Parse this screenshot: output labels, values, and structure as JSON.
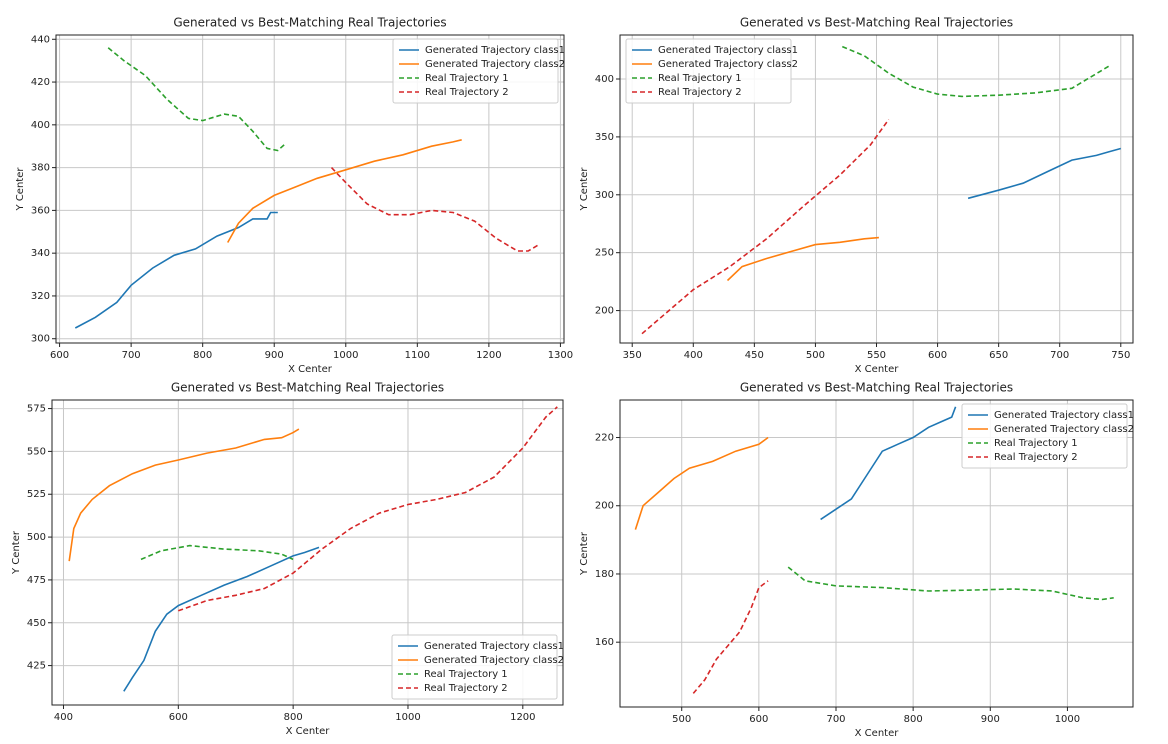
{
  "chart_data": [
    {
      "type": "line",
      "title": "Generated vs Best-Matching Real Trajectories",
      "x_label": "X Center",
      "y_label": "Y Center",
      "xlim": [
        595,
        1305
      ],
      "xticks": [
        600,
        700,
        800,
        900,
        1000,
        1100,
        1200,
        1300
      ],
      "ylim": [
        298,
        442
      ],
      "yticks": [
        300,
        320,
        340,
        360,
        380,
        400,
        420,
        440
      ],
      "grid": true,
      "legend": "upper right",
      "series": [
        {
          "name": "Generated Trajectory class1",
          "color": "#1f77b4",
          "linestyle": "solid",
          "x": [
            622,
            650,
            680,
            700,
            730,
            760,
            790,
            820,
            850,
            870,
            890,
            895,
            905
          ],
          "values": [
            305,
            310,
            317,
            325,
            333,
            339,
            342,
            348,
            352,
            356,
            356,
            359,
            359
          ]
        },
        {
          "name": "Generated Trajectory class2",
          "color": "#ff7f0e",
          "linestyle": "solid",
          "x": [
            835,
            850,
            870,
            900,
            930,
            960,
            1000,
            1040,
            1080,
            1120,
            1150,
            1162
          ],
          "values": [
            345,
            354,
            361,
            367,
            371,
            375,
            379,
            383,
            386,
            390,
            392,
            393
          ]
        },
        {
          "name": "Real Trajectory 1",
          "color": "#2ca02c",
          "linestyle": "dashed",
          "x": [
            668,
            690,
            720,
            750,
            780,
            800,
            830,
            850,
            870,
            890,
            905,
            915
          ],
          "values": [
            436,
            430,
            423,
            412,
            403,
            402,
            405,
            404,
            397,
            389,
            388,
            391
          ]
        },
        {
          "name": "Real Trajectory 2",
          "color": "#d62728",
          "linestyle": "dashed",
          "x": [
            980,
            1000,
            1030,
            1060,
            1090,
            1120,
            1150,
            1180,
            1210,
            1240,
            1255,
            1270
          ],
          "values": [
            380,
            373,
            363,
            358,
            358,
            360,
            359,
            355,
            347,
            341,
            341,
            344
          ]
        }
      ]
    },
    {
      "type": "line",
      "title": "Generated vs Best-Matching Real Trajectories",
      "x_label": "X Center",
      "y_label": "Y Center",
      "xlim": [
        340,
        760
      ],
      "xticks": [
        350,
        400,
        450,
        500,
        550,
        600,
        650,
        700,
        750
      ],
      "ylim": [
        172,
        438
      ],
      "yticks": [
        200,
        250,
        300,
        350,
        400
      ],
      "grid": true,
      "legend": "upper left",
      "series": [
        {
          "name": "Generated Trajectory class1",
          "color": "#1f77b4",
          "linestyle": "solid",
          "x": [
            625,
            650,
            670,
            690,
            710,
            730,
            740,
            750
          ],
          "values": [
            297,
            304,
            310,
            320,
            330,
            334,
            337,
            340
          ]
        },
        {
          "name": "Generated Trajectory class2",
          "color": "#ff7f0e",
          "linestyle": "solid",
          "x": [
            428,
            440,
            460,
            480,
            500,
            520,
            540,
            552
          ],
          "values": [
            226,
            238,
            245,
            251,
            257,
            259,
            262,
            263
          ]
        },
        {
          "name": "Real Trajectory 1",
          "color": "#2ca02c",
          "linestyle": "dashed",
          "x": [
            522,
            540,
            560,
            580,
            600,
            620,
            650,
            680,
            710,
            740
          ],
          "values": [
            428,
            420,
            405,
            393,
            387,
            385,
            386,
            388,
            392,
            411
          ]
        },
        {
          "name": "Real Trajectory 2",
          "color": "#d62728",
          "linestyle": "dashed",
          "x": [
            358,
            380,
            400,
            430,
            460,
            490,
            520,
            545,
            560
          ],
          "values": [
            180,
            200,
            218,
            238,
            262,
            290,
            317,
            343,
            365
          ]
        }
      ]
    },
    {
      "type": "line",
      "title": "Generated vs Best-Matching Real Trajectories",
      "x_label": "X Center",
      "y_label": "Y Center",
      "xlim": [
        380,
        1270
      ],
      "xticks": [
        400,
        600,
        800,
        1000,
        1200
      ],
      "ylim": [
        402,
        580
      ],
      "yticks": [
        425,
        450,
        475,
        500,
        525,
        550,
        575
      ],
      "grid": true,
      "legend": "lower right",
      "series": [
        {
          "name": "Generated Trajectory class1",
          "color": "#1f77b4",
          "linestyle": "solid",
          "x": [
            505,
            520,
            540,
            560,
            580,
            600,
            640,
            680,
            720,
            760,
            800,
            820,
            845
          ],
          "values": [
            410,
            418,
            428,
            445,
            455,
            460,
            466,
            472,
            477,
            483,
            489,
            491,
            494
          ]
        },
        {
          "name": "Generated Trajectory class2",
          "color": "#ff7f0e",
          "linestyle": "solid",
          "x": [
            410,
            418,
            430,
            450,
            480,
            520,
            560,
            600,
            650,
            700,
            750,
            780,
            800,
            810
          ],
          "values": [
            486,
            505,
            514,
            522,
            530,
            537,
            542,
            545,
            549,
            552,
            557,
            558,
            561,
            563
          ]
        },
        {
          "name": "Real Trajectory 1",
          "color": "#2ca02c",
          "linestyle": "dashed",
          "x": [
            535,
            570,
            620,
            680,
            740,
            780,
            800
          ],
          "values": [
            487,
            492,
            495,
            493,
            492,
            490,
            487
          ]
        },
        {
          "name": "Real Trajectory 2",
          "color": "#d62728",
          "linestyle": "dashed",
          "x": [
            600,
            650,
            700,
            750,
            800,
            850,
            900,
            950,
            1000,
            1050,
            1100,
            1150,
            1200,
            1240,
            1260
          ],
          "values": [
            457,
            463,
            466,
            470,
            479,
            493,
            505,
            514,
            519,
            522,
            526,
            535,
            552,
            570,
            576
          ]
        }
      ]
    },
    {
      "type": "line",
      "title": "Generated vs Best-Matching Real Trajectories",
      "x_label": "X Center",
      "y_label": "Y Center",
      "xlim": [
        420,
        1085
      ],
      "xticks": [
        500,
        600,
        700,
        800,
        900,
        1000
      ],
      "ylim": [
        141,
        231
      ],
      "yticks": [
        160,
        180,
        200,
        220
      ],
      "grid": true,
      "legend": "upper right",
      "series": [
        {
          "name": "Generated Trajectory class1",
          "color": "#1f77b4",
          "linestyle": "solid",
          "x": [
            680,
            700,
            720,
            740,
            760,
            780,
            800,
            820,
            840,
            850,
            855
          ],
          "values": [
            196,
            199,
            202,
            209,
            216,
            218,
            220,
            223,
            225,
            226,
            229
          ]
        },
        {
          "name": "Generated Trajectory class2",
          "color": "#ff7f0e",
          "linestyle": "solid",
          "x": [
            440,
            450,
            470,
            490,
            510,
            540,
            570,
            600,
            612
          ],
          "values": [
            193,
            200,
            204,
            208,
            211,
            213,
            216,
            218,
            220
          ]
        },
        {
          "name": "Real Trajectory 1",
          "color": "#2ca02c",
          "linestyle": "dashed",
          "x": [
            638,
            660,
            700,
            760,
            820,
            880,
            930,
            980,
            1020,
            1045,
            1060
          ],
          "values": [
            182,
            178,
            176.5,
            176,
            175,
            175.3,
            175.6,
            175,
            173,
            172.5,
            173
          ]
        },
        {
          "name": "Real Trajectory 2",
          "color": "#d62728",
          "linestyle": "dashed",
          "x": [
            515,
            530,
            545,
            560,
            575,
            590,
            600,
            612
          ],
          "values": [
            145,
            149,
            155,
            159,
            163,
            170,
            176,
            178
          ]
        }
      ]
    }
  ]
}
